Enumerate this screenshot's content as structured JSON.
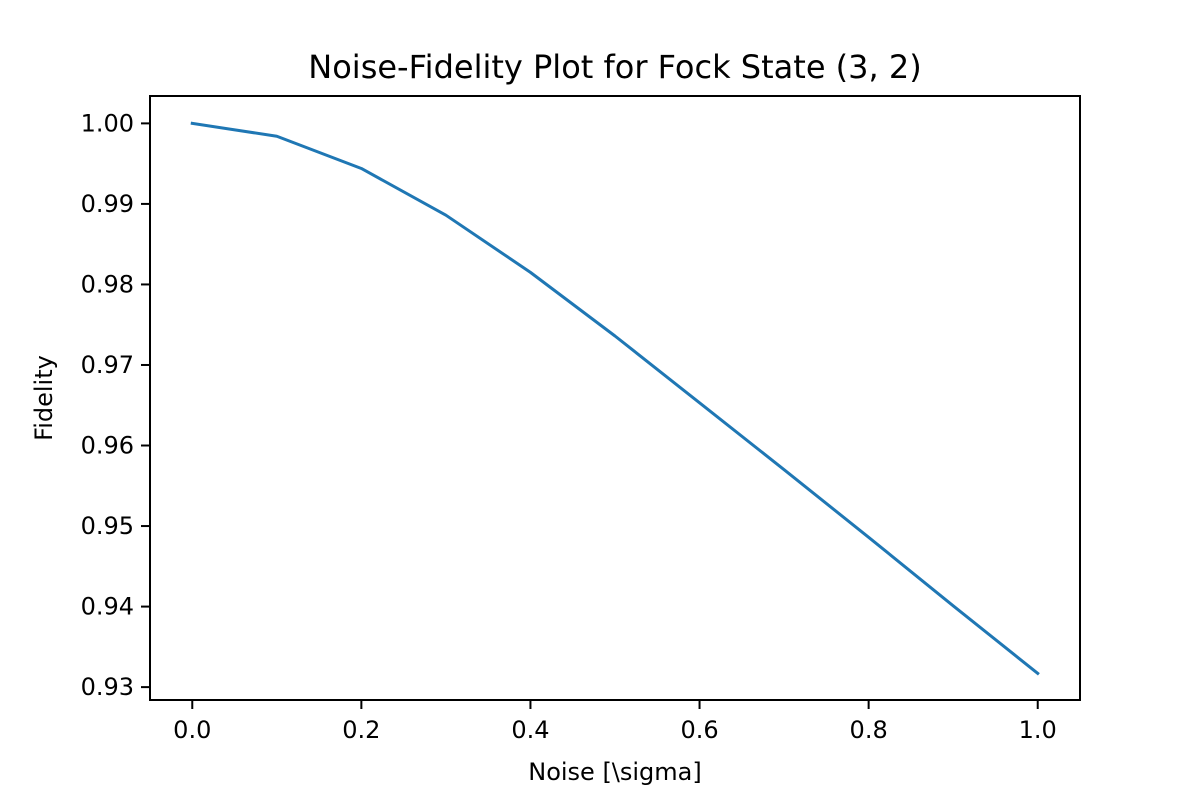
{
  "chart_data": {
    "type": "line",
    "title": "Noise-Fidelity Plot for Fock State (3, 2)",
    "xlabel": "Noise [\\sigma]",
    "ylabel": "Fidelity",
    "xlim": [
      -0.05,
      1.05
    ],
    "ylim": [
      0.9284,
      1.0034
    ],
    "x_ticks": [
      0.0,
      0.2,
      0.4,
      0.6,
      0.8,
      1.0
    ],
    "x_tick_labels": [
      "0.0",
      "0.2",
      "0.4",
      "0.6",
      "0.8",
      "1.0"
    ],
    "y_ticks": [
      0.93,
      0.94,
      0.95,
      0.96,
      0.97,
      0.98,
      0.99,
      1.0
    ],
    "y_tick_labels": [
      "0.93",
      "0.94",
      "0.95",
      "0.96",
      "0.97",
      "0.98",
      "0.99",
      "1.00"
    ],
    "grid": false,
    "series": [
      {
        "color": "#1f77b4",
        "x": [
          0.0,
          0.1,
          0.2,
          0.3,
          0.4,
          0.5,
          0.6,
          0.7,
          0.8,
          0.9,
          1.0
        ],
        "y": [
          1.0,
          0.9984,
          0.9944,
          0.9886,
          0.9815,
          0.9736,
          0.9653,
          0.957,
          0.9486,
          0.9401,
          0.9317
        ]
      }
    ]
  }
}
